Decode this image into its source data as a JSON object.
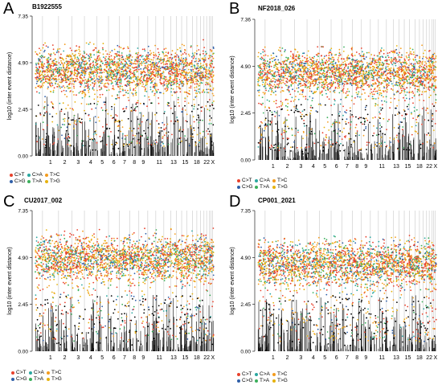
{
  "colors": {
    "C>T": "#E8412C",
    "C>G": "#2F5FA8",
    "C>A": "#2BA7A0",
    "T>A": "#3BAF5B",
    "T>C": "#F39C1E",
    "T>G": "#E6B20E",
    "background": "#000000",
    "chrom_line": "#c8c8c8"
  },
  "legend": {
    "entries": [
      "C>T",
      "C>G",
      "C>A",
      "T>A",
      "T>C",
      "T>G"
    ]
  },
  "chart_data": [
    {
      "type": "scatter",
      "panel": "A",
      "title": "B1922555",
      "ylabel": "log10 (inter event distance)",
      "xlabel": "",
      "ylim": [
        0,
        7.35
      ],
      "yticks": [
        "0.00",
        "2.45",
        "4.90",
        "7.35"
      ],
      "xticks": [
        "1",
        "2",
        "3",
        "4",
        "5",
        "6",
        "7",
        "8",
        "9",
        "11",
        "13",
        "15",
        "18",
        "22",
        "X"
      ],
      "series": [
        "C>T",
        "C>G",
        "C>A",
        "T>A",
        "T>C",
        "T>G"
      ],
      "band": {
        "center": 4.5,
        "top": 6.0
      },
      "grid": false
    },
    {
      "type": "scatter",
      "panel": "B",
      "title": "NF2018_026",
      "ylabel": "log10 (inter event distance)",
      "xlabel": "",
      "ylim": [
        0,
        7.36
      ],
      "yticks": [
        "0.00",
        "2.45",
        "4.90",
        "7.36"
      ],
      "xticks": [
        "1",
        "2",
        "3",
        "4",
        "5",
        "6",
        "7",
        "8",
        "9",
        "11",
        "13",
        "15",
        "18",
        "22",
        "X"
      ],
      "series": [
        "C>T",
        "C>G",
        "C>A",
        "T>A",
        "T>C",
        "T>G"
      ],
      "band": {
        "center": 4.6,
        "top": 6.0
      },
      "grid": false
    },
    {
      "type": "scatter",
      "panel": "C",
      "title": "CU2017_002",
      "ylabel": "log10 (inter event distance)",
      "xlabel": "",
      "ylim": [
        0,
        7.35
      ],
      "yticks": [
        "0.00",
        "2.45",
        "4.90",
        "7.35"
      ],
      "xticks": [
        "1",
        "2",
        "3",
        "4",
        "5",
        "6",
        "7",
        "8",
        "9",
        "11",
        "13",
        "15",
        "18",
        "22",
        "X"
      ],
      "series": [
        "C>T",
        "C>G",
        "C>A",
        "T>A",
        "T>C",
        "T>G"
      ],
      "band": {
        "center": 4.9,
        "top": 6.4
      },
      "grid": false
    },
    {
      "type": "scatter",
      "panel": "D",
      "title": "CP001_2021",
      "ylabel": "log10 (inter event distance)",
      "xlabel": "",
      "ylim": [
        0,
        7.35
      ],
      "yticks": [
        "0.00",
        "2.45",
        "4.90",
        "7.35"
      ],
      "xticks": [
        "1",
        "2",
        "3",
        "4",
        "5",
        "6",
        "7",
        "8",
        "9",
        "11",
        "13",
        "15",
        "18",
        "22",
        "X"
      ],
      "series": [
        "C>T",
        "C>G",
        "C>A",
        "T>A",
        "T>C",
        "T>G"
      ],
      "band": {
        "center": 4.6,
        "top": 6.0
      },
      "grid": false
    }
  ]
}
